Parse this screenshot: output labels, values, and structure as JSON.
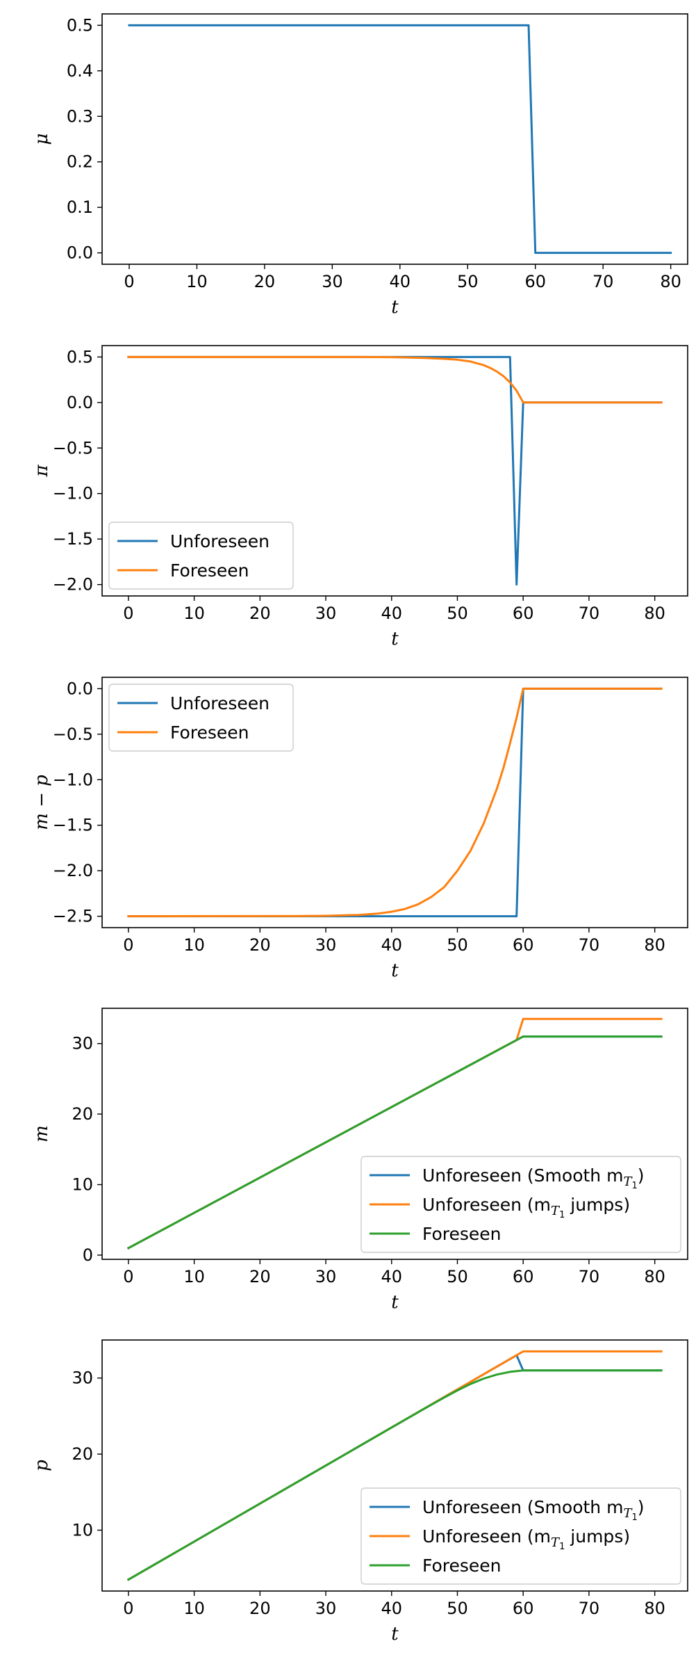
{
  "colors": {
    "blue": "#1f77b4",
    "orange": "#ff7f0e",
    "green": "#2ca02c",
    "axes": "#000000",
    "legend_border": "#cccccc"
  },
  "chart_data": [
    {
      "type": "line",
      "xlabel": "t",
      "ylabel": "μ",
      "xlim": [
        -4,
        82.5
      ],
      "ylim": [
        -0.025,
        0.525
      ],
      "xticks": [
        0,
        10,
        20,
        30,
        40,
        50,
        60,
        70,
        80
      ],
      "xtick_labels": [
        "0",
        "10",
        "20",
        "30",
        "40",
        "50",
        "60",
        "70",
        "80"
      ],
      "yticks": [
        0.0,
        0.1,
        0.2,
        0.3,
        0.4,
        0.5
      ],
      "ytick_labels": [
        "0.0",
        "0.1",
        "0.2",
        "0.3",
        "0.4",
        "0.5"
      ],
      "legend": null,
      "series": [
        {
          "color_key": "blue",
          "x": [
            0,
            59,
            60,
            80
          ],
          "y": [
            0.5,
            0.5,
            0.0,
            0.0
          ]
        }
      ]
    },
    {
      "type": "line",
      "xlabel": "t",
      "ylabel": "π",
      "xlim": [
        -4,
        85
      ],
      "ylim": [
        -2.125,
        0.625
      ],
      "xticks": [
        0,
        10,
        20,
        30,
        40,
        50,
        60,
        70,
        80
      ],
      "xtick_labels": [
        "0",
        "10",
        "20",
        "30",
        "40",
        "50",
        "60",
        "70",
        "80"
      ],
      "yticks": [
        0.5,
        0.0,
        -0.5,
        -1.0,
        -1.5,
        -2.0
      ],
      "ytick_labels": [
        "0.5",
        "0.0",
        "−0.5",
        "−1.0",
        "−1.5",
        "−2.0"
      ],
      "legend": {
        "placement": "lower-left"
      },
      "series": [
        {
          "name": "Unforeseen",
          "color_key": "blue",
          "x": [
            0,
            58,
            59,
            60,
            81
          ],
          "y": [
            0.5,
            0.5,
            -2.0,
            0.0,
            0.0
          ]
        },
        {
          "name": "Foreseen",
          "color_key": "orange",
          "x": [
            0,
            30,
            35,
            40,
            45,
            48,
            50,
            52,
            54,
            55,
            56,
            57,
            58,
            59,
            60,
            81
          ],
          "y": [
            0.5,
            0.4999,
            0.4995,
            0.498,
            0.49,
            0.48,
            0.47,
            0.45,
            0.41,
            0.38,
            0.34,
            0.29,
            0.22,
            0.13,
            0.0,
            0.0
          ]
        }
      ]
    },
    {
      "type": "line",
      "xlabel": "t",
      "ylabel": "m − p",
      "xlim": [
        -4,
        85
      ],
      "ylim": [
        -2.625,
        0.125
      ],
      "xticks": [
        0,
        10,
        20,
        30,
        40,
        50,
        60,
        70,
        80
      ],
      "xtick_labels": [
        "0",
        "10",
        "20",
        "30",
        "40",
        "50",
        "60",
        "70",
        "80"
      ],
      "yticks": [
        0.0,
        -0.5,
        -1.0,
        -1.5,
        -2.0,
        -2.5
      ],
      "ytick_labels": [
        "0.0",
        "−0.5",
        "−1.0",
        "−1.5",
        "−2.0",
        "−2.5"
      ],
      "legend": {
        "placement": "upper-left"
      },
      "series": [
        {
          "name": "Unforeseen",
          "color_key": "blue",
          "x": [
            0,
            59,
            60,
            81
          ],
          "y": [
            -2.5,
            -2.5,
            0.0,
            0.0
          ]
        },
        {
          "name": "Foreseen",
          "color_key": "orange",
          "x": [
            0,
            25,
            30,
            35,
            38,
            40,
            42,
            44,
            46,
            48,
            50,
            52,
            54,
            56,
            57,
            58,
            59,
            60,
            81
          ],
          "y": [
            -2.5,
            -2.498,
            -2.495,
            -2.485,
            -2.47,
            -2.45,
            -2.42,
            -2.37,
            -2.29,
            -2.18,
            -2.0,
            -1.78,
            -1.48,
            -1.1,
            -0.87,
            -0.6,
            -0.32,
            0.0,
            0.0
          ]
        }
      ]
    },
    {
      "type": "line",
      "xlabel": "t",
      "ylabel": "m",
      "xlim": [
        -4,
        85
      ],
      "ylim": [
        -0.6,
        35
      ],
      "xticks": [
        0,
        10,
        20,
        30,
        40,
        50,
        60,
        70,
        80
      ],
      "xtick_labels": [
        "0",
        "10",
        "20",
        "30",
        "40",
        "50",
        "60",
        "70",
        "80"
      ],
      "yticks": [
        0,
        10,
        20,
        30
      ],
      "ytick_labels": [
        "0",
        "10",
        "20",
        "30"
      ],
      "legend": {
        "placement": "lower-right"
      },
      "series": [
        {
          "name": "Unforeseen (Smooth m",
          "name_sub": "T",
          "name_subsub": "1",
          "name_suffix": ")",
          "color_key": "blue",
          "x": [
            0,
            60,
            81
          ],
          "y": [
            1.0,
            31.0,
            31.0
          ]
        },
        {
          "name": "Unforeseen (m",
          "name_sub": "T",
          "name_subsub": "1",
          "name_suffix": " jumps)",
          "color_key": "orange",
          "x": [
            0,
            59,
            60,
            81
          ],
          "y": [
            1.0,
            30.5,
            33.5,
            33.5
          ]
        },
        {
          "name": "Foreseen",
          "color_key": "green",
          "x": [
            0,
            60,
            81
          ],
          "y": [
            1.0,
            31.0,
            31.0
          ]
        }
      ]
    },
    {
      "type": "line",
      "xlabel": "t",
      "ylabel": "p",
      "xlim": [
        -4,
        85
      ],
      "ylim": [
        2.0,
        35.0
      ],
      "xticks": [
        0,
        10,
        20,
        30,
        40,
        50,
        60,
        70,
        80
      ],
      "xtick_labels": [
        "0",
        "10",
        "20",
        "30",
        "40",
        "50",
        "60",
        "70",
        "80"
      ],
      "yticks": [
        10,
        20,
        30
      ],
      "ytick_labels": [
        "10",
        "20",
        "30"
      ],
      "legend": {
        "placement": "lower-right"
      },
      "series": [
        {
          "name": "Unforeseen (Smooth m",
          "name_sub": "T",
          "name_subsub": "1",
          "name_suffix": ")",
          "color_key": "blue",
          "x": [
            0,
            59,
            60,
            81
          ],
          "y": [
            3.5,
            33.0,
            31.0,
            31.0
          ]
        },
        {
          "name": "Unforeseen (m",
          "name_sub": "T",
          "name_subsub": "1",
          "name_suffix": " jumps)",
          "color_key": "orange",
          "x": [
            0,
            60,
            81
          ],
          "y": [
            3.5,
            33.5,
            33.5
          ]
        },
        {
          "name": "Foreseen",
          "color_key": "green",
          "x": [
            0,
            35,
            40,
            45,
            48,
            50,
            52,
            54,
            56,
            58,
            60,
            81
          ],
          "y": [
            3.5,
            21.0,
            23.5,
            25.98,
            27.44,
            28.37,
            29.22,
            29.93,
            30.46,
            30.81,
            31.0,
            31.0
          ]
        }
      ]
    }
  ]
}
